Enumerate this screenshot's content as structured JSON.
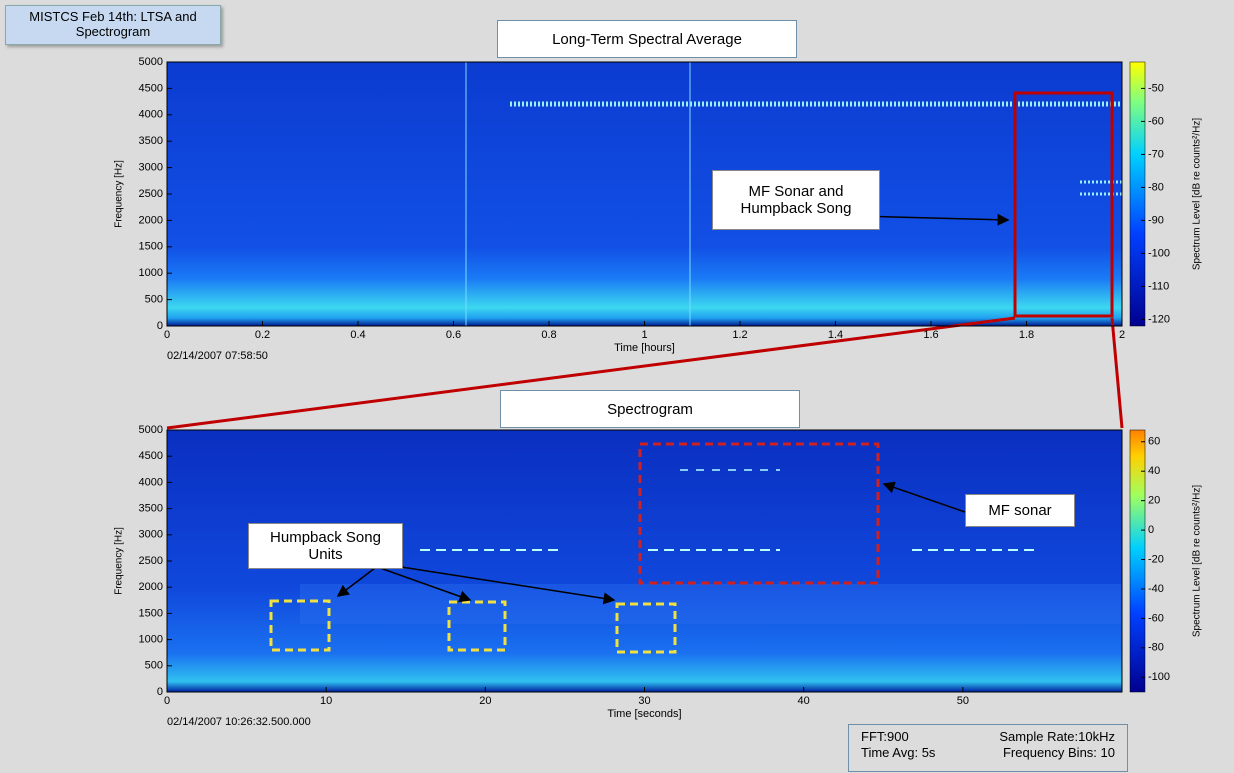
{
  "header": {
    "title": "MISTCS Feb 14th: LTSA and Spectrogram"
  },
  "chart_data": [
    {
      "type": "spectrogram",
      "title": "Long-Term Spectral Average",
      "xlabel": "Time [hours]",
      "ylabel": "Frequency [Hz]",
      "timestamp": "02/14/2007 07:58:50",
      "xlim": [
        0,
        2
      ],
      "xticks": [
        0,
        0.2,
        0.4,
        0.6,
        0.8,
        1,
        1.2,
        1.4,
        1.6,
        1.8,
        2
      ],
      "ylim": [
        0,
        5000
      ],
      "yticks": [
        0,
        500,
        1000,
        1500,
        2000,
        2500,
        3000,
        3500,
        4000,
        4500,
        5000
      ],
      "colorbar": {
        "label": "Spectrum Level [dB re counts²/Hz]",
        "lim": [
          -122,
          -42
        ],
        "ticks": [
          -120,
          -110,
          -100,
          -90,
          -80,
          -70,
          -60,
          -50
        ]
      },
      "annotations": [
        {
          "text": "MF Sonar and Humpback Song"
        }
      ]
    },
    {
      "type": "spectrogram",
      "title": "Spectrogram",
      "xlabel": "Time [seconds]",
      "ylabel": "Frequency [Hz]",
      "timestamp": "02/14/2007 10:26:32.500.000",
      "xlim": [
        0,
        60
      ],
      "xticks": [
        0,
        10,
        20,
        30,
        40,
        50
      ],
      "ylim": [
        0,
        5000
      ],
      "yticks": [
        0,
        500,
        1000,
        1500,
        2000,
        2500,
        3000,
        3500,
        4000,
        4500,
        5000
      ],
      "colorbar": {
        "label": "Spectrum Level [dB re counts²/Hz]",
        "lim": [
          -110,
          68
        ],
        "ticks": [
          -100,
          -80,
          -60,
          -40,
          -20,
          0,
          20,
          40,
          60
        ]
      },
      "annotations": [
        {
          "text": "Humpback Song Units"
        },
        {
          "text": "MF sonar"
        }
      ]
    }
  ],
  "footer": {
    "fft": "FFT:900",
    "sample_rate": "Sample Rate:10kHz",
    "time_avg": "Time Avg: 5s",
    "frequency_bins": "Frequency Bins: 10"
  }
}
